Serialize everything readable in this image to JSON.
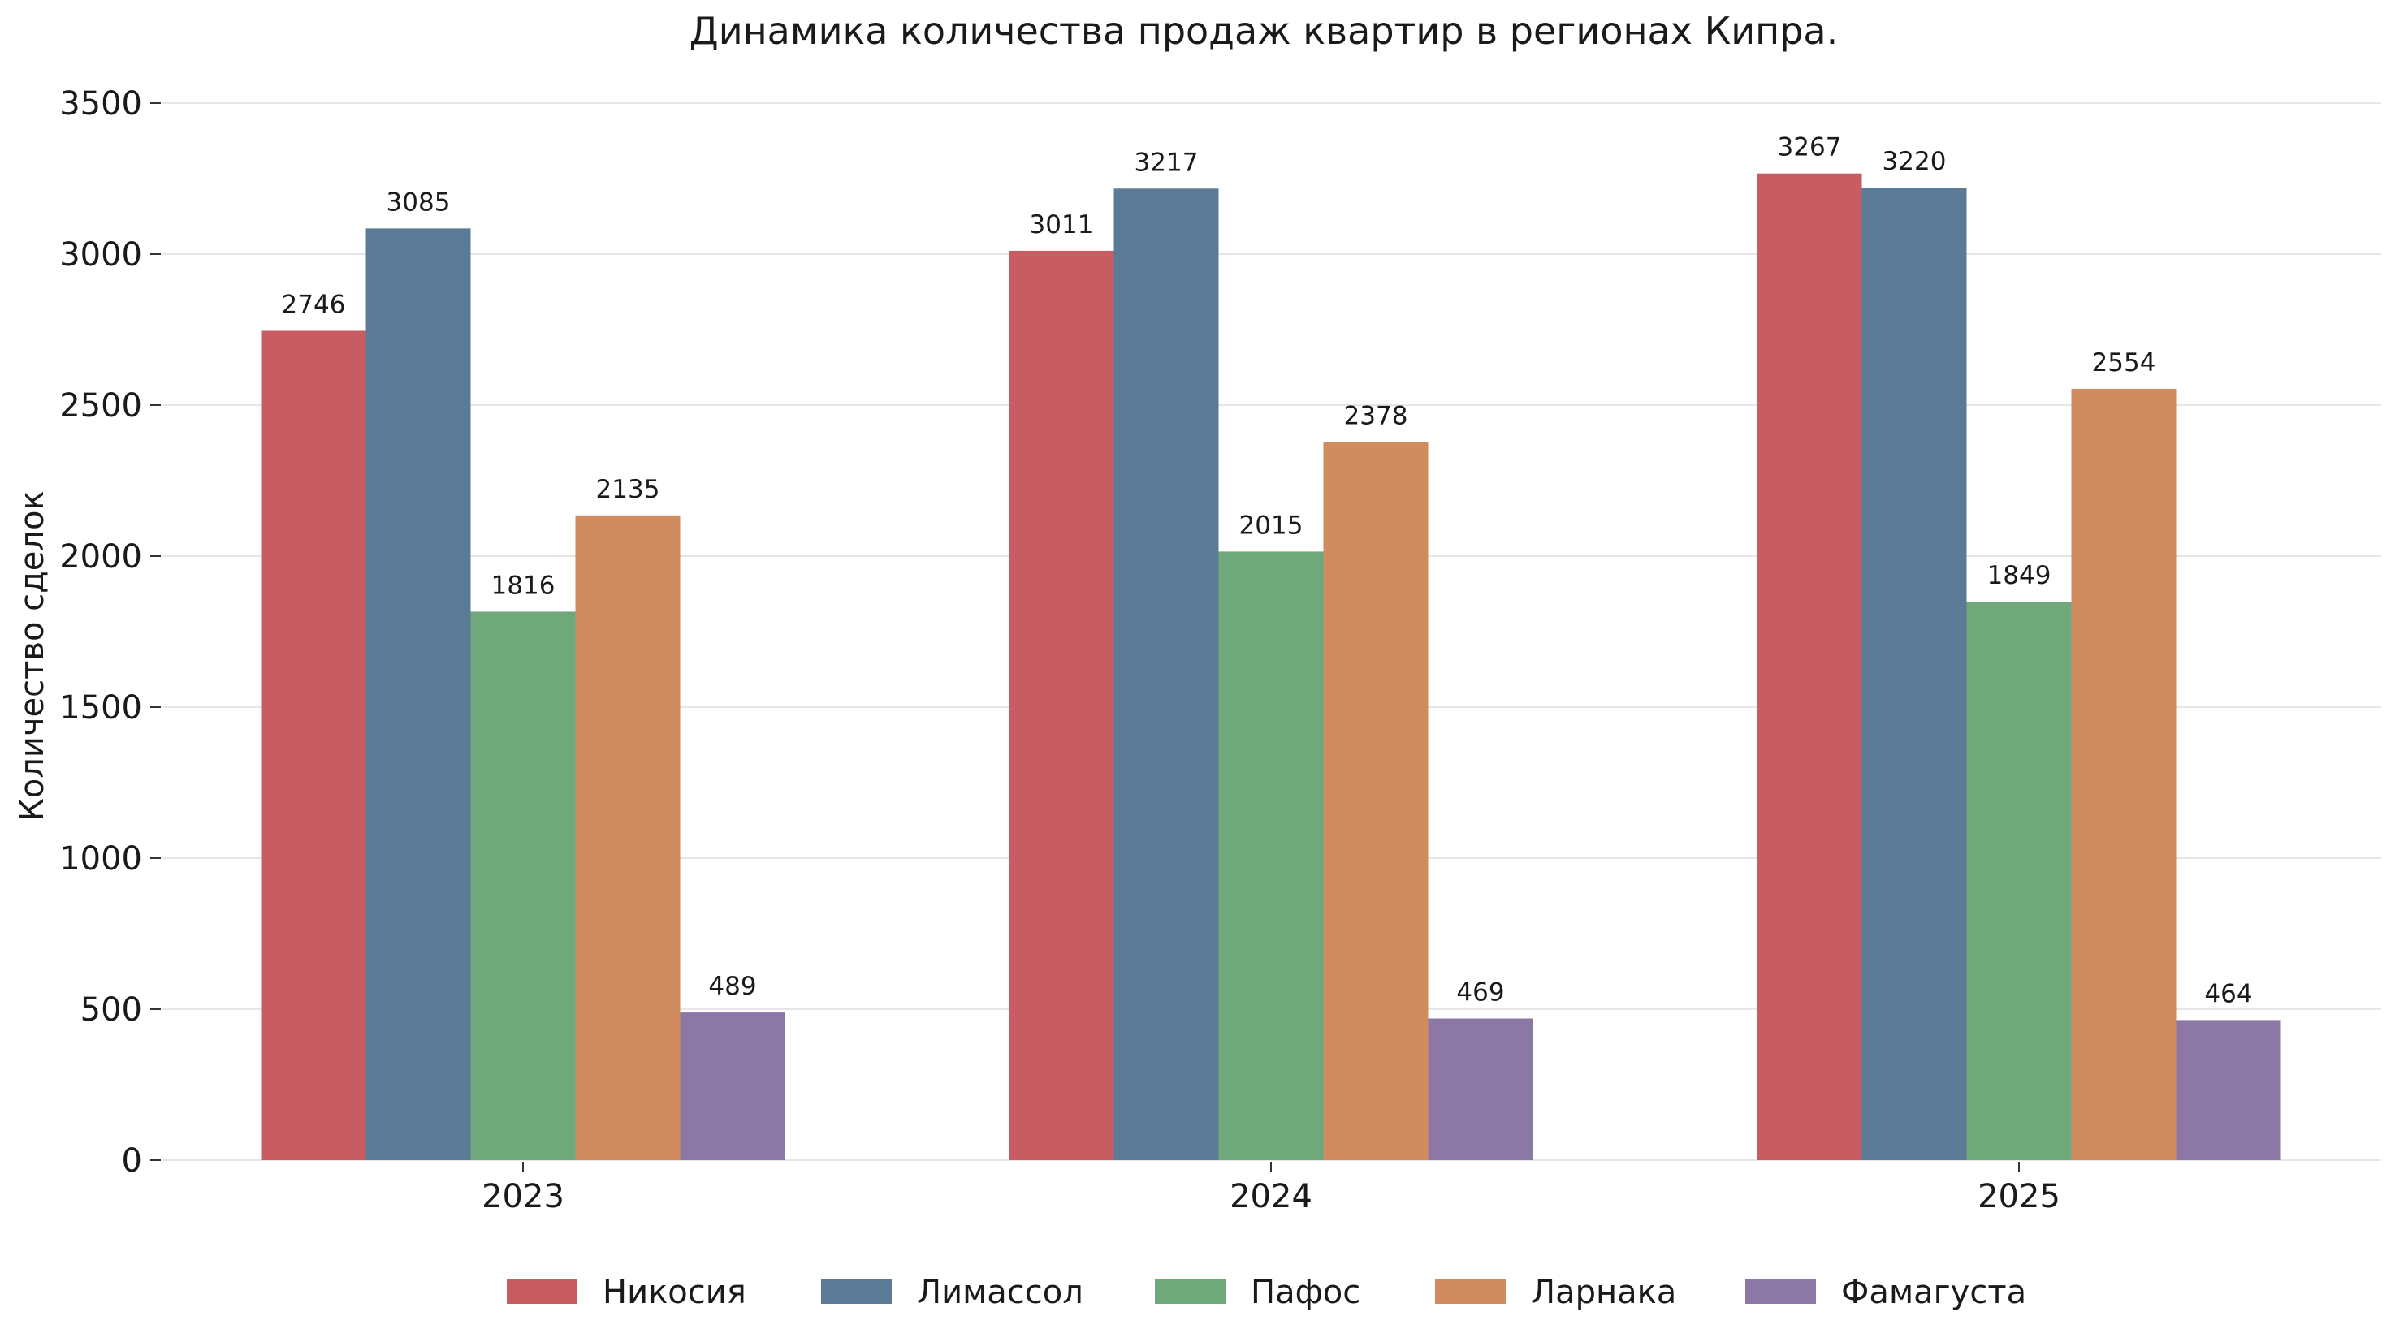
{
  "chart_data": {
    "type": "bar",
    "title": "Динамика количества продаж квартир в регионах Кипра.",
    "xlabel": "",
    "ylabel": "Количество сделок",
    "categories": [
      "2023",
      "2024",
      "2025"
    ],
    "ylim": [
      0,
      3500
    ],
    "yticks": [
      0,
      500,
      1000,
      1500,
      2000,
      2500,
      3000,
      3500
    ],
    "grid": true,
    "legend_position": "bottom-center",
    "series": [
      {
        "name": "Никосия",
        "color": "#c95c62",
        "values": [
          2746,
          3011,
          3267
        ]
      },
      {
        "name": "Лимассол",
        "color": "#5a7a96",
        "values": [
          3085,
          3217,
          3220
        ]
      },
      {
        "name": "Пафос",
        "color": "#6fa87b",
        "values": [
          1816,
          2015,
          1849
        ]
      },
      {
        "name": "Ларнака",
        "color": "#d08b5f",
        "values": [
          2135,
          2378,
          2554
        ]
      },
      {
        "name": "Фамагуста",
        "color": "#8b78a5",
        "values": [
          489,
          469,
          464
        ]
      }
    ]
  }
}
